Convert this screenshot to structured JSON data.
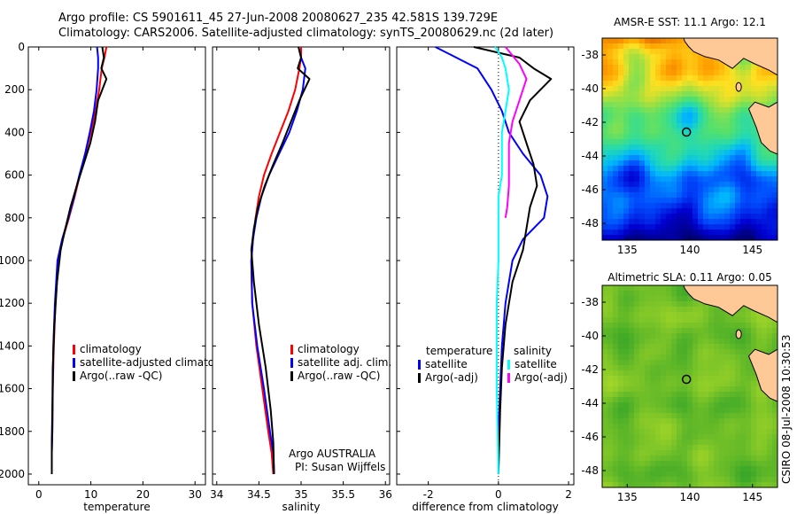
{
  "header": {
    "line1": "Argo profile: CS 5901611_45 27-Jun-2008 20080627_235 42.581S 139.729E",
    "line2": "Climatology: CARS2006. Satellite-adjusted climatology: synTS_20080629.nc (2d later)"
  },
  "colors": {
    "climatology": "#ff0000",
    "satellite": "#0000ff",
    "argo": "#000000",
    "sat_salinity": "#00ffff",
    "argo_salinity": "#ff00ff",
    "land": "#ffc896",
    "float_marker": "#000000"
  },
  "chart_data": [
    {
      "type": "line",
      "panel": "temperature",
      "xlabel": "temperature",
      "ylabel": "",
      "xlim": [
        -2,
        32
      ],
      "ylim": [
        2050,
        0
      ],
      "xticks": [
        0,
        10,
        20,
        30
      ],
      "yticks": [
        0,
        200,
        400,
        600,
        800,
        1000,
        1200,
        1400,
        1600,
        1800,
        2000
      ],
      "legend": [
        "climatology",
        "satellite-adjusted climatolog",
        "Argo(..raw -QC)"
      ],
      "series": [
        {
          "name": "climatology",
          "color": "#ff0000",
          "x": [
            13.0,
            12.6,
            12.1,
            11.6,
            10.9,
            10.0,
            9.0,
            7.9,
            6.9,
            5.8,
            4.6,
            3.8,
            3.2,
            2.9,
            2.7,
            2.6,
            2.5,
            2.5
          ],
          "y": [
            0,
            50,
            100,
            200,
            300,
            400,
            500,
            600,
            700,
            800,
            900,
            1000,
            1200,
            1400,
            1600,
            1800,
            1900,
            2000
          ]
        },
        {
          "name": "satellite-adjusted climatolog",
          "color": "#0000ff",
          "x": [
            11.2,
            11.4,
            11.4,
            11.1,
            10.6,
            9.8,
            8.9,
            7.8,
            6.8,
            5.7,
            4.5,
            3.6,
            3.1,
            2.8,
            2.7,
            2.6,
            2.5,
            2.5
          ],
          "y": [
            0,
            50,
            100,
            200,
            300,
            400,
            500,
            600,
            700,
            800,
            900,
            1000,
            1200,
            1400,
            1600,
            1800,
            1900,
            2000
          ]
        },
        {
          "name": "Argo(..raw -QC)",
          "color": "#000000",
          "x": [
            12.2,
            12.5,
            12.0,
            13.0,
            11.4,
            10.8,
            9.9,
            8.6,
            7.3,
            6.1,
            5.1,
            4.2,
            3.5,
            3.0,
            2.7,
            2.6,
            2.5,
            2.5
          ],
          "y": [
            0,
            50,
            100,
            150,
            250,
            350,
            450,
            550,
            650,
            750,
            850,
            950,
            1100,
            1300,
            1500,
            1700,
            1850,
            2000
          ]
        }
      ]
    },
    {
      "type": "line",
      "panel": "salinity",
      "xlabel": "salinity",
      "ylabel": "",
      "xlim": [
        33.95,
        36.05
      ],
      "ylim": [
        2050,
        0
      ],
      "xticks": [
        34,
        34.5,
        35,
        35.5,
        36
      ],
      "legend": [
        "climatology",
        "satellite adj. clim.",
        "Argo(..raw -QC)"
      ],
      "annotation": [
        "Argo AUSTRALIA",
        "PI: Susan Wijffels"
      ],
      "series": [
        {
          "name": "climatology",
          "color": "#ff0000",
          "x": [
            35.0,
            35.0,
            34.98,
            34.93,
            34.85,
            34.75,
            34.65,
            34.56,
            34.5,
            34.46,
            34.43,
            34.41,
            34.42,
            34.47,
            34.54,
            34.61,
            34.65,
            34.67
          ],
          "y": [
            0,
            50,
            100,
            200,
            300,
            400,
            500,
            600,
            700,
            800,
            900,
            1000,
            1200,
            1400,
            1600,
            1800,
            1900,
            2000
          ]
        },
        {
          "name": "satellite adj. clim.",
          "color": "#0000ff",
          "x": [
            34.97,
            35.0,
            35.05,
            35.02,
            34.95,
            34.86,
            34.74,
            34.62,
            34.53,
            34.47,
            34.43,
            34.41,
            34.42,
            34.48,
            34.56,
            34.63,
            34.67,
            34.68
          ],
          "y": [
            0,
            50,
            100,
            200,
            300,
            400,
            500,
            600,
            700,
            800,
            900,
            1000,
            1200,
            1400,
            1600,
            1800,
            1900,
            2000
          ]
        },
        {
          "name": "Argo(..raw -QC)",
          "color": "#000000",
          "x": [
            34.97,
            35.0,
            34.96,
            35.1,
            34.98,
            34.88,
            34.78,
            34.67,
            34.57,
            34.49,
            34.44,
            34.41,
            34.44,
            34.5,
            34.58,
            34.64,
            34.67,
            34.68
          ],
          "y": [
            0,
            50,
            100,
            150,
            250,
            350,
            450,
            550,
            650,
            750,
            850,
            950,
            1100,
            1300,
            1500,
            1700,
            1850,
            2000
          ]
        }
      ]
    },
    {
      "type": "line",
      "panel": "difference",
      "xlabel": "difference from climatology",
      "ylabel": "",
      "xlim": [
        -2.9,
        2.15
      ],
      "ylim": [
        2050,
        0
      ],
      "xticks": [
        -2,
        0,
        2
      ],
      "legend_headers": [
        "temperature",
        "salinity"
      ],
      "legend": [
        "satellite",
        "Argo(-adj)",
        "satellite",
        "Argo(-adj)"
      ],
      "series": [
        {
          "name": "satellite",
          "group": "temperature",
          "color": "#0000ff",
          "x": [
            -1.8,
            -1.2,
            -0.6,
            -0.2,
            0.1,
            0.3,
            0.7,
            1.2,
            1.4,
            1.3,
            0.7,
            0.4,
            0.2,
            0.1,
            0.05,
            0.0,
            0.0
          ],
          "y": [
            0,
            50,
            100,
            200,
            300,
            400,
            500,
            600,
            700,
            800,
            900,
            1000,
            1200,
            1400,
            1600,
            1800,
            2000
          ]
        },
        {
          "name": "Argo(-adj)",
          "group": "temperature",
          "color": "#000000",
          "x": [
            -0.7,
            0.6,
            1.0,
            1.5,
            0.9,
            0.6,
            0.8,
            1.0,
            1.1,
            0.9,
            0.8,
            0.7,
            0.4,
            0.2,
            0.1,
            0.05,
            0.0
          ],
          "y": [
            0,
            50,
            100,
            150,
            250,
            350,
            450,
            550,
            650,
            750,
            850,
            950,
            1100,
            1300,
            1500,
            1700,
            2000
          ]
        },
        {
          "name": "satellite",
          "group": "salinity",
          "color": "#00ffff",
          "x": [
            -0.1,
            0.1,
            0.2,
            0.3,
            0.2,
            0.1,
            0.1,
            0.1,
            0.0,
            0.0,
            0.0,
            0.0,
            -0.05,
            -0.05,
            -0.05,
            0.0
          ],
          "y": [
            0,
            50,
            100,
            200,
            300,
            400,
            500,
            600,
            700,
            800,
            900,
            1000,
            1200,
            1400,
            1600,
            2000
          ]
        },
        {
          "name": "Argo(-adj)",
          "group": "salinity",
          "color": "#ff00ff",
          "x": [
            0.2,
            0.6,
            0.8,
            0.6,
            0.4,
            0.3,
            0.3,
            0.3,
            0.25,
            0.2
          ],
          "y": [
            0,
            80,
            150,
            250,
            350,
            450,
            550,
            650,
            750,
            800
          ]
        }
      ]
    },
    {
      "type": "heatmap",
      "panel": "sst_map",
      "title": "AMSR-E SST: 11.1 Argo: 12.1",
      "xlim": [
        133,
        147
      ],
      "ylim": [
        -49,
        -37
      ],
      "xticks": [
        135,
        140,
        145
      ],
      "yticks": [
        -38,
        -40,
        -42,
        -44,
        -46,
        -48
      ],
      "marker": {
        "lon": 139.729,
        "lat": -42.581
      }
    },
    {
      "type": "heatmap",
      "panel": "sla_map",
      "title": "Altimetric SLA: 0.11 Argo: 0.05",
      "xlim": [
        133,
        147
      ],
      "ylim": [
        -49,
        -37
      ],
      "xticks": [
        135,
        140,
        145
      ],
      "yticks": [
        -38,
        -40,
        -42,
        -44,
        -46,
        -48
      ],
      "marker": {
        "lon": 139.729,
        "lat": -42.581
      }
    }
  ],
  "footer": {
    "timestamp": "CSIRO 08-Jul-2008 10:30:53"
  }
}
